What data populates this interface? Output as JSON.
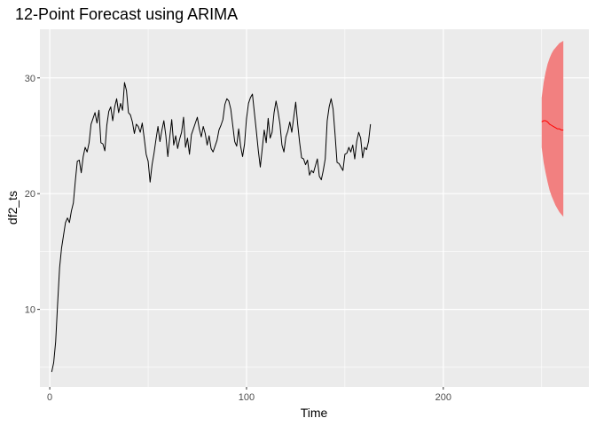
{
  "chart_data": {
    "type": "line",
    "title": "12-Point Forecast using ARIMA",
    "xlabel": "Time",
    "ylabel": "df2_ts",
    "xlim": [
      -5,
      274
    ],
    "ylim": [
      3.3,
      34.2
    ],
    "x_ticks": [
      0,
      100,
      200
    ],
    "y_ticks": [
      10,
      20,
      30
    ],
    "x_tick_labels": [
      "0",
      "100",
      "200"
    ],
    "y_tick_labels": [
      "10",
      "20",
      "30"
    ],
    "grid": true,
    "legend": "none",
    "colors": {
      "panel_bg": "#EBEBEB",
      "grid_major": "#FFFFFF",
      "observed": "#000000",
      "forecast": "#FF0000",
      "interval": "#F28080"
    },
    "series": [
      {
        "type": "line",
        "x_start": 1,
        "values": [
          4.6,
          5.4,
          7.2,
          10.5,
          13.6,
          15.3,
          16.4,
          17.5,
          17.9,
          17.5,
          18.5,
          19.2,
          21.1,
          22.8,
          22.9,
          21.8,
          23.2,
          24.0,
          23.6,
          24.4,
          26.0,
          26.5,
          27.0,
          26.1,
          27.2,
          24.4,
          24.3,
          23.7,
          25.9,
          27.1,
          27.5,
          26.3,
          27.5,
          28.2,
          27.0,
          27.8,
          27.2,
          29.6,
          28.9,
          27.0,
          26.8,
          26.2,
          25.2,
          26.0,
          25.8,
          25.3,
          26.1,
          24.8,
          23.4,
          22.8,
          21.0,
          22.5,
          23.5,
          24.7,
          25.8,
          24.5,
          25.5,
          26.3,
          25.0,
          23.2,
          24.9,
          26.4,
          24.2,
          25.0,
          23.9,
          24.7,
          25.3,
          26.6,
          24.0,
          24.8,
          23.4,
          25.1,
          25.6,
          26.1,
          26.6,
          25.6,
          24.9,
          25.8,
          25.2,
          24.2,
          25.0,
          23.9,
          23.6,
          24.1,
          24.6,
          25.5,
          25.9,
          26.4,
          27.7,
          28.2,
          28.0,
          27.3,
          25.9,
          24.5,
          24.1,
          25.6,
          24.1,
          23.2,
          24.3,
          26.5,
          27.8,
          28.3,
          28.6,
          27.0,
          25.4,
          23.7,
          22.3,
          23.9,
          25.5,
          24.4,
          26.5,
          24.8,
          25.3,
          27.0,
          28.0,
          27.1,
          26.0,
          24.2,
          23.6,
          24.9,
          25.4,
          26.2,
          25.3,
          26.6,
          27.9,
          26.0,
          24.4,
          23.1,
          23.0,
          22.5,
          22.9,
          21.6,
          22.0,
          21.8,
          22.4,
          23.0,
          21.5,
          21.2,
          22.0,
          23.0,
          26.3,
          27.5,
          28.2,
          27.3,
          25.1,
          22.7,
          22.6,
          22.3,
          22.0,
          23.4,
          23.5,
          24.0,
          23.6,
          24.2,
          23.0,
          24.5,
          25.3,
          24.8,
          23.1,
          24.0,
          23.8,
          24.5,
          26.0
        ]
      },
      {
        "type": "forecast_mean",
        "x": [
          250,
          251,
          252,
          253,
          254,
          255,
          256,
          257,
          258,
          259,
          260,
          261
        ],
        "values": [
          26.2,
          26.3,
          26.3,
          26.2,
          26.0,
          25.9,
          25.8,
          25.7,
          25.6,
          25.6,
          25.5,
          25.5
        ]
      },
      {
        "type": "forecast_interval",
        "x": [
          250,
          251,
          252,
          253,
          254,
          255,
          256,
          257,
          258,
          259,
          260,
          261
        ],
        "lower": [
          24.0,
          22.7,
          21.8,
          21.0,
          20.3,
          19.8,
          19.4,
          19.0,
          18.7,
          18.4,
          18.2,
          18.0
        ],
        "upper": [
          28.3,
          29.6,
          30.5,
          31.2,
          31.7,
          32.1,
          32.4,
          32.6,
          32.8,
          33.0,
          33.1,
          33.2
        ]
      }
    ]
  }
}
